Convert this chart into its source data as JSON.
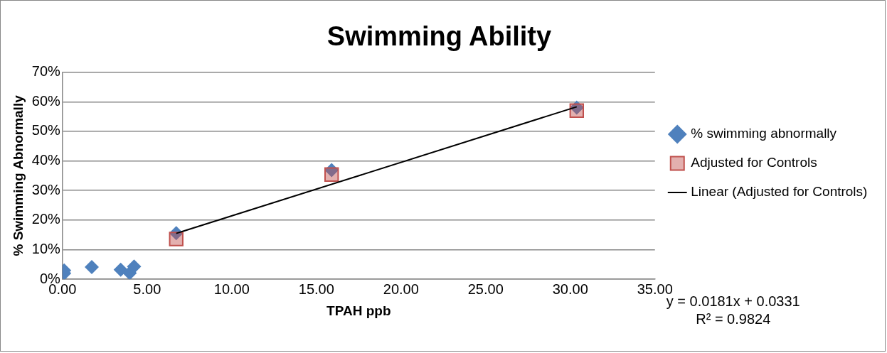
{
  "chart_data": {
    "type": "scatter",
    "title": "Swimming Ability",
    "xlabel": "TPAH ppb",
    "ylabel": "% Swimming Abnormally",
    "xlim": [
      0,
      35
    ],
    "xticks": [
      {
        "value": 0,
        "label": "0.00"
      },
      {
        "value": 5,
        "label": "5.00"
      },
      {
        "value": 10,
        "label": "10.00"
      },
      {
        "value": 15,
        "label": "15.00"
      },
      {
        "value": 20,
        "label": "20.00"
      },
      {
        "value": 25,
        "label": "25.00"
      },
      {
        "value": 30,
        "label": "30.00"
      },
      {
        "value": 35,
        "label": "35.00"
      }
    ],
    "ylim": [
      0,
      0.7
    ],
    "yticks": [
      {
        "value": 0,
        "label": "0%"
      },
      {
        "value": 0.1,
        "label": "10%"
      },
      {
        "value": 0.2,
        "label": "20%"
      },
      {
        "value": 0.3,
        "label": "30%"
      },
      {
        "value": 0.4,
        "label": "40%"
      },
      {
        "value": 0.5,
        "label": "50%"
      },
      {
        "value": 0.6,
        "label": "60%"
      },
      {
        "value": 0.7,
        "label": "70%"
      }
    ],
    "grid": "y",
    "legend": "right",
    "series": [
      {
        "name": "% swimming abnormally",
        "type": "scatter",
        "marker": "diamond",
        "color": "#4f81bd",
        "x": [
          0.1,
          0.1,
          1.73,
          3.44,
          3.97,
          4.23,
          6.72,
          15.9,
          30.38
        ],
        "values": [
          0.03,
          0.02,
          0.041,
          0.032,
          0.021,
          0.043,
          0.156,
          0.369,
          0.58
        ]
      },
      {
        "name": "Adjusted for Controls",
        "type": "scatter",
        "marker": "square",
        "color": "#c0504d",
        "x": [
          6.72,
          15.9,
          30.38
        ],
        "values": [
          0.136,
          0.354,
          0.57
        ]
      },
      {
        "name": "Linear (Adjusted for Controls)",
        "type": "line",
        "marker": "none",
        "color": "#000000",
        "x": [
          6.72,
          30.38
        ],
        "values": [
          0.155,
          0.583
        ]
      }
    ],
    "annotations": [
      "y = 0.0181x + 0.0331",
      "R² = 0.9824"
    ]
  }
}
